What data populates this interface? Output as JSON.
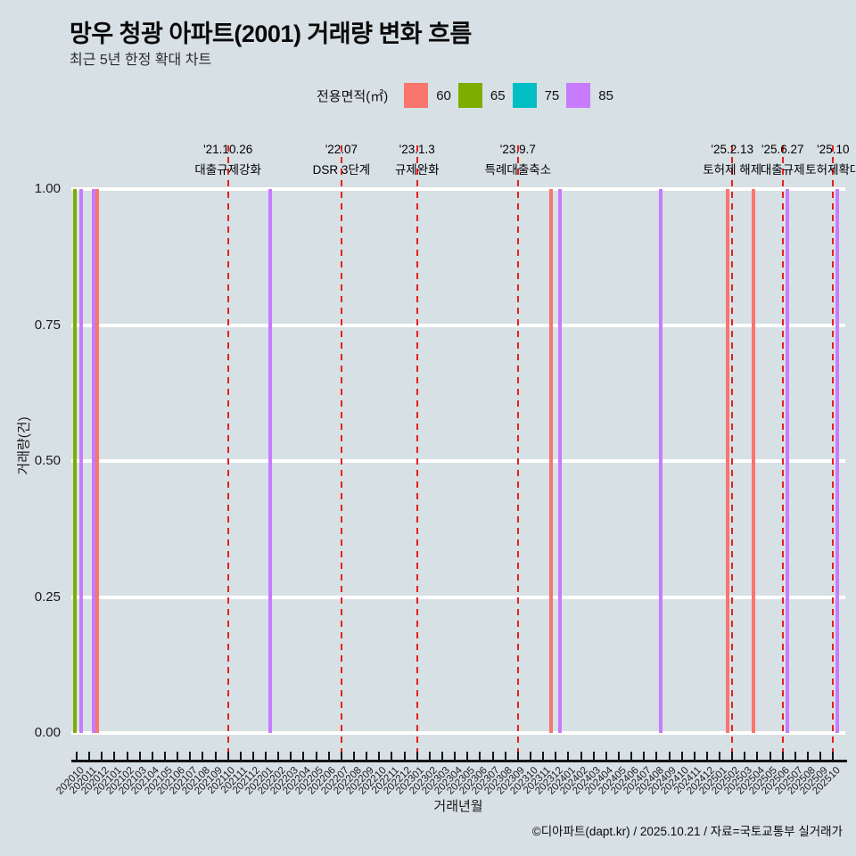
{
  "title": "망우 청광 아파트(2001) 거래량 변화 흐름",
  "subtitle": "최근 5년 한정 확대 차트",
  "legend": {
    "label": "전용면적(㎡)",
    "items": [
      {
        "label": "60",
        "color": "#F8766D"
      },
      {
        "label": "65",
        "color": "#7CAE00"
      },
      {
        "label": "75",
        "color": "#00BFC4"
      },
      {
        "label": "85",
        "color": "#C77CFF"
      }
    ]
  },
  "chart_data": {
    "type": "bar",
    "title": "망우 청광 아파트(2001) 거래량 변화 흐름",
    "xlabel": "거래년월",
    "ylabel": "거래량(건)",
    "ylim": [
      0,
      1
    ],
    "yticks": [
      {
        "label": "1.00",
        "value": 1.0
      },
      {
        "label": "0.75",
        "value": 0.75
      },
      {
        "label": "0.50",
        "value": 0.5
      },
      {
        "label": "0.25",
        "value": 0.25
      },
      {
        "label": "0.00",
        "value": 0.0
      }
    ],
    "x": [
      "202010",
      "202011",
      "202012",
      "202101",
      "202102",
      "202103",
      "202104",
      "202105",
      "202106",
      "202107",
      "202108",
      "202109",
      "202110",
      "202111",
      "202112",
      "202201",
      "202202",
      "202203",
      "202204",
      "202205",
      "202206",
      "202207",
      "202208",
      "202209",
      "202210",
      "202211",
      "202212",
      "202301",
      "202302",
      "202303",
      "202304",
      "202305",
      "202306",
      "202307",
      "202308",
      "202309",
      "202310",
      "202311",
      "202312",
      "202401",
      "202402",
      "202403",
      "202404",
      "202405",
      "202406",
      "202407",
      "202408",
      "202409",
      "202410",
      "202411",
      "202412",
      "202501",
      "202502",
      "202503",
      "202504",
      "202505",
      "202506",
      "202507",
      "202508",
      "202509",
      "202510"
    ],
    "series": [
      {
        "name": "60",
        "color": "#F8766D",
        "points": [
          {
            "month": "202012",
            "value": 1
          },
          {
            "month": "202312",
            "value": 1
          },
          {
            "month": "202502",
            "value": 1
          },
          {
            "month": "202504",
            "value": 1
          }
        ]
      },
      {
        "name": "65",
        "color": "#7CAE00",
        "points": [
          {
            "month": "202010",
            "value": 1
          }
        ]
      },
      {
        "name": "75",
        "color": "#00BFC4",
        "points": []
      },
      {
        "name": "85",
        "color": "#C77CFF",
        "points": [
          {
            "month": "202010",
            "value": 1
          },
          {
            "month": "202011",
            "value": 1
          },
          {
            "month": "202201",
            "value": 1
          },
          {
            "month": "202312",
            "value": 1
          },
          {
            "month": "202408",
            "value": 1
          },
          {
            "month": "202506",
            "value": 1
          },
          {
            "month": "202510",
            "value": 1
          }
        ]
      }
    ],
    "events": [
      {
        "date": "'21.10.26",
        "label": "대출규제강화",
        "month": "202110"
      },
      {
        "date": "'22.07",
        "label": "DSR 3단계",
        "month": "202207"
      },
      {
        "date": "'23.1.3",
        "label": "규제완화",
        "month": "202301"
      },
      {
        "date": "'23.9.7",
        "label": "특례대출축소",
        "month": "202309"
      },
      {
        "date": "'25.2.13",
        "label": "토허제 해제",
        "month": "202502"
      },
      {
        "date": "'25.6.27",
        "label": "대출규제",
        "month": "202506"
      },
      {
        "date": "'25.10",
        "label": "토허제확대",
        "month": "202510"
      }
    ],
    "event_line_color": "#e62020",
    "grid": "horizontal-white"
  },
  "footer": "©디아파트(dapt.kr) / 2025.10.21 / 자료=국토교통부 실거래가"
}
